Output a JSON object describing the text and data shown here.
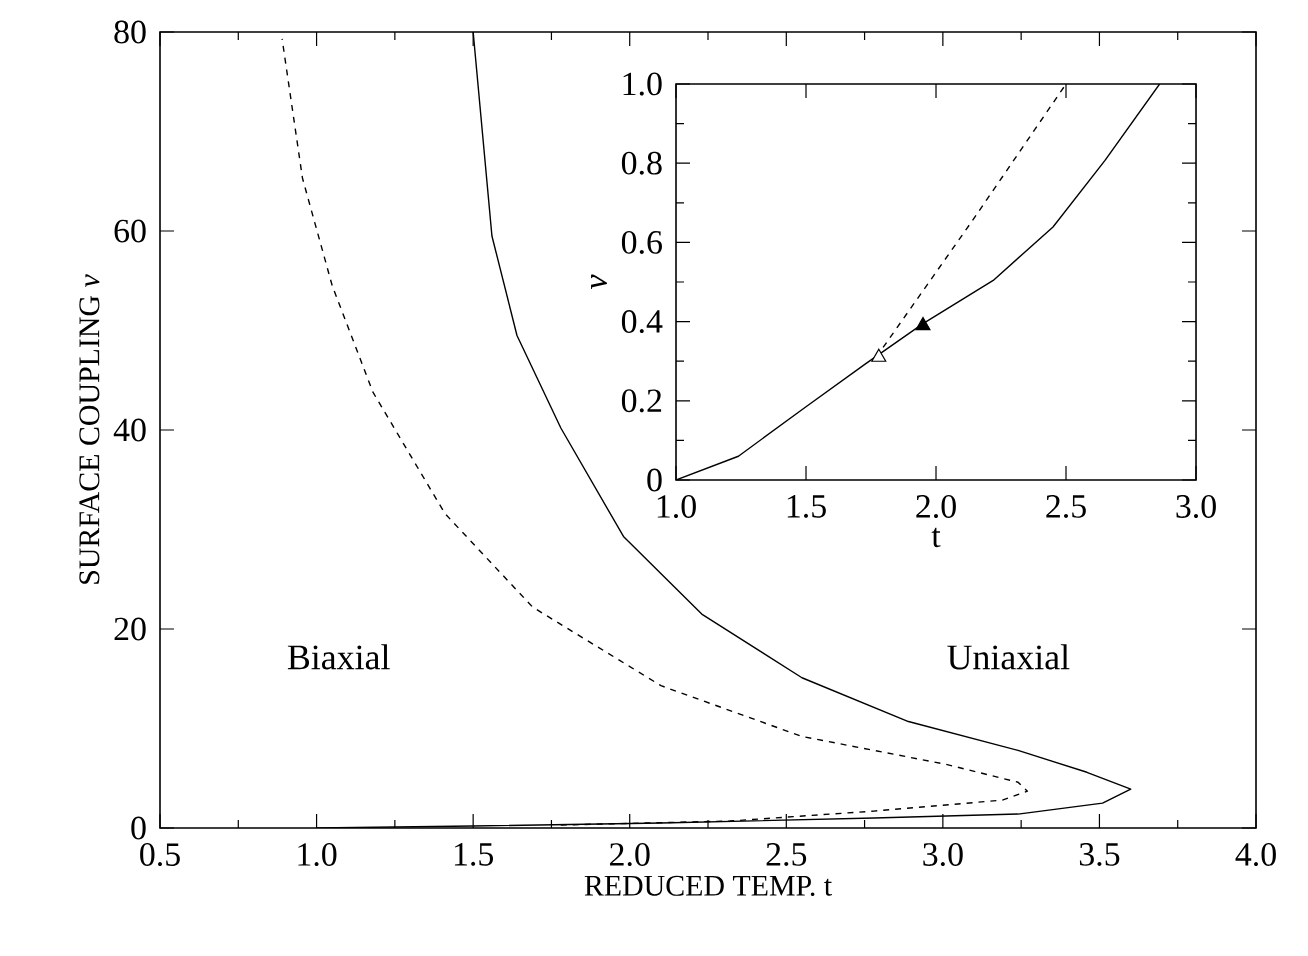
{
  "chart_data": [
    {
      "type": "line",
      "xlabel": "REDUCED TEMP. t",
      "ylabel": "SURFACE COUPLING *ν*",
      "xlim": [
        0.5,
        4.0
      ],
      "ylim": [
        0,
        80
      ],
      "xticks": [
        {
          "value": 0.5,
          "label": "0.5"
        },
        {
          "value": 1.0,
          "label": "1.0"
        },
        {
          "value": 1.5,
          "label": "1.5"
        },
        {
          "value": 2.0,
          "label": "2.0"
        },
        {
          "value": 2.5,
          "label": "2.5"
        },
        {
          "value": 3.0,
          "label": "3.0"
        },
        {
          "value": 3.5,
          "label": "3.5"
        },
        {
          "value": 4.0,
          "label": "4.0"
        }
      ],
      "yticks": [
        0,
        20,
        40,
        60,
        80
      ],
      "annotations": [
        "Biaxial",
        "Uniaxial"
      ],
      "series": [
        {
          "color": "#000000",
          "line_style": "solid",
          "x": [
            1.0,
            1.5,
            2.1,
            2.78,
            3.24,
            3.51,
            3.6,
            3.46,
            3.24,
            2.89,
            2.55,
            2.23,
            1.98,
            1.78,
            1.64,
            1.56,
            1.5
          ],
          "values": [
            0,
            0.2,
            0.5,
            1.0,
            1.4,
            2.5,
            3.9,
            5.6,
            7.8,
            10.7,
            15.1,
            21.5,
            29.3,
            40.2,
            49.5,
            59.5,
            80
          ]
        },
        {
          "color": "#000000",
          "line_style": "dashed",
          "x": [
            1.78,
            2.32,
            2.78,
            3.19,
            3.27,
            3.24,
            3.01,
            2.55,
            2.1,
            1.69,
            1.41,
            1.18,
            1.05,
            0.955,
            0.89
          ],
          "values": [
            0.3,
            0.7,
            1.7,
            2.8,
            3.7,
            4.6,
            6.4,
            9.2,
            14.3,
            22.2,
            31.6,
            43.8,
            54.5,
            65.3,
            79.3
          ]
        }
      ]
    },
    {
      "type": "line",
      "xlabel": "t",
      "ylabel": "ν",
      "xlim": [
        1.0,
        3.0
      ],
      "ylim": [
        0,
        1.0
      ],
      "xticks": [
        {
          "value": 1.0,
          "label": "1.0"
        },
        {
          "value": 1.5,
          "label": "1.5"
        },
        {
          "value": 2.0,
          "label": "2.0"
        },
        {
          "value": 2.5,
          "label": "2.5"
        },
        {
          "value": 3.0,
          "label": "3.0"
        }
      ],
      "yticks": [
        0,
        {
          "value": 0.2,
          "label": "0.2"
        },
        {
          "value": 0.4,
          "label": "0.4"
        },
        {
          "value": 0.6,
          "label": "0.6"
        },
        {
          "value": 0.8,
          "label": "0.8"
        },
        {
          "value": 1.0,
          "label": "1.0"
        }
      ],
      "series": [
        {
          "color": "#000000",
          "line_style": "solid",
          "x": [
            1.0,
            1.24,
            1.5,
            1.73,
            1.95,
            2.22,
            2.45,
            2.65,
            2.86
          ],
          "values": [
            0,
            0.06,
            0.185,
            0.294,
            0.395,
            0.504,
            0.639,
            0.807,
            1.0
          ]
        },
        {
          "color": "#000000",
          "line_style": "dashed",
          "x": [
            1.77,
            2.14,
            2.5
          ],
          "values": [
            0.31,
            0.655,
            1.0
          ]
        },
        {
          "type": "scatter",
          "marker": "triangle",
          "color": "#ffffff",
          "x": [
            1.78
          ],
          "values": [
            0.31
          ]
        },
        {
          "type": "scatter",
          "marker": "triangle",
          "color": "#000000",
          "x": [
            1.95
          ],
          "values": [
            0.39
          ]
        }
      ]
    }
  ]
}
